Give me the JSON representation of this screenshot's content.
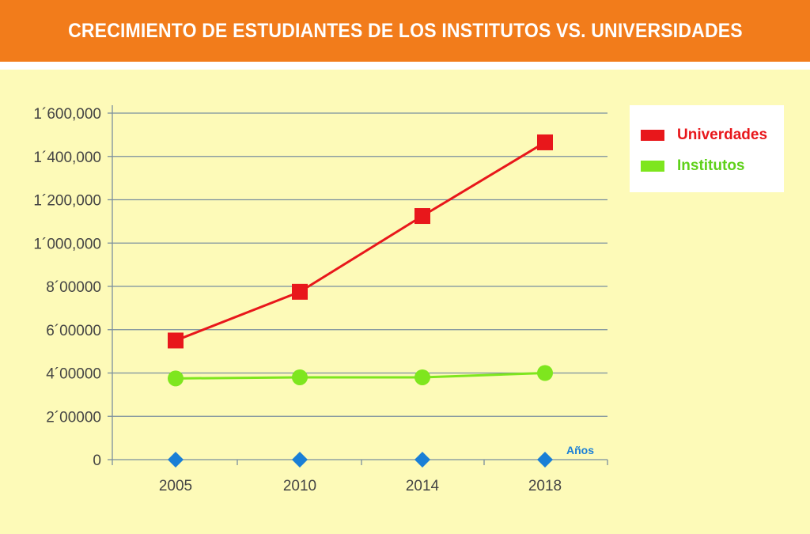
{
  "title": "CRECIMIENTO DE ESTUDIANTES DE LOS INSTITUTOS VS. UNIVERSIDADES",
  "legend": {
    "universidades_label": "Univerdades",
    "institutos_label": "Institutos"
  },
  "colors": {
    "title_bar": "#f27c1b",
    "background": "#fdfab8",
    "universidades": "#e8171b",
    "institutos": "#7ee61e",
    "baseline_markers": "#1a7fd6",
    "grid": "#7a8f9e"
  },
  "chart_data": {
    "type": "line",
    "title": "CRECIMIENTO DE ESTUDIANTES DE LOS INSTITUTOS VS. UNIVERSIDADES",
    "xlabel": "Años",
    "ylabel": "",
    "categories": [
      "2005",
      "2010",
      "2014",
      "2018"
    ],
    "ylim": [
      0,
      1600000
    ],
    "yticks": [
      0,
      200000,
      400000,
      600000,
      800000,
      1000000,
      1200000,
      1400000,
      1600000
    ],
    "ytick_labels": [
      "0",
      "2´00000",
      "4´00000",
      "6´00000",
      "8´00000",
      "1´000,000",
      "1´200,000",
      "1´400,000",
      "1´600,000"
    ],
    "grid": true,
    "legend_position": "top-right",
    "series": [
      {
        "name": "Univerdades",
        "marker": "square",
        "color": "#e8171b",
        "values": [
          550000,
          775000,
          1125000,
          1465000
        ]
      },
      {
        "name": "Institutos",
        "marker": "circle",
        "color": "#7ee61e",
        "values": [
          375000,
          380000,
          380000,
          400000
        ]
      },
      {
        "marker": "diamond",
        "color": "#1a7fd6",
        "values": [
          0,
          0,
          0,
          0
        ]
      }
    ]
  }
}
